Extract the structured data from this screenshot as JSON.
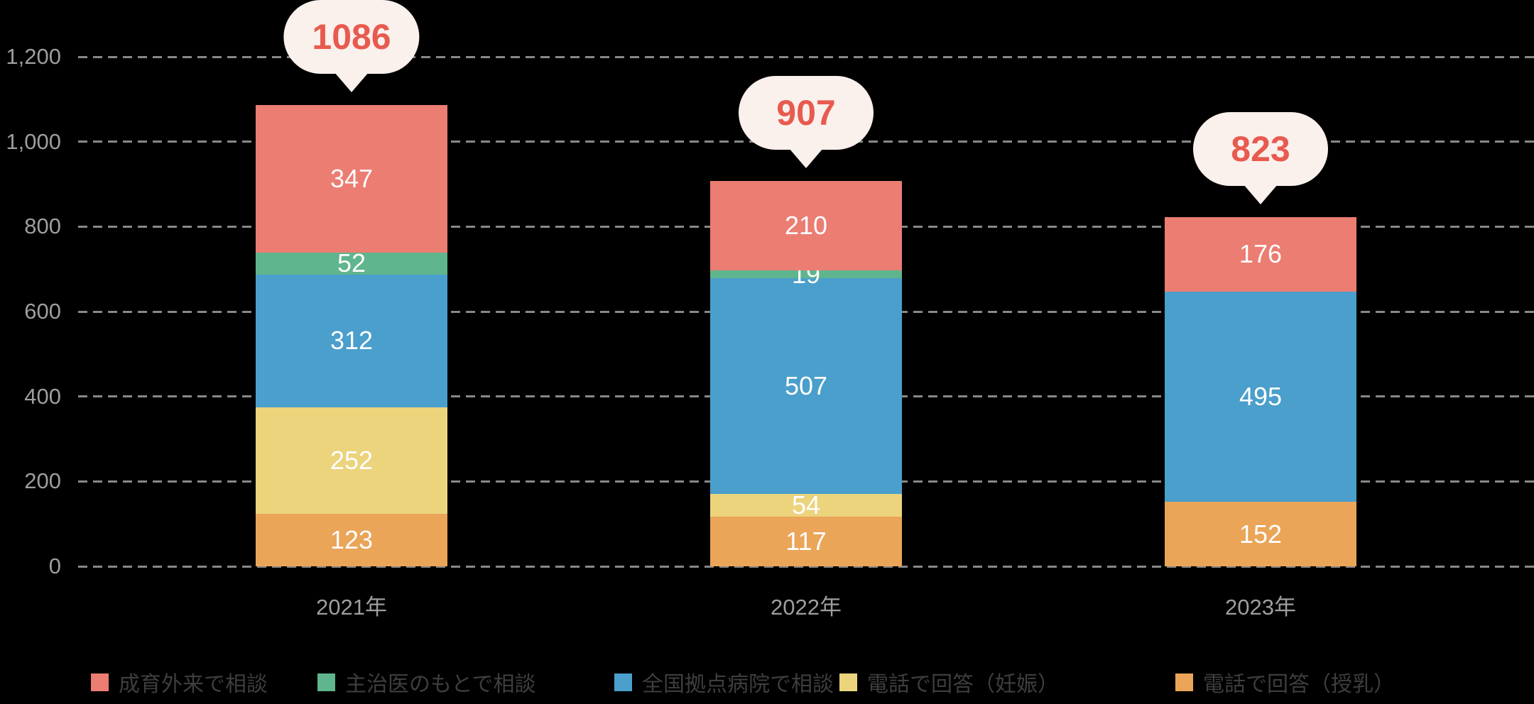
{
  "background": "#000000",
  "style": {
    "grid_color": "#888888",
    "axis_text_color": "#9e9e9e",
    "legend_text_color": "#3e3e3e",
    "bar_label_color": "#ffffff",
    "bubble_bg": "#faf0ec",
    "bubble_text_color": "#e85a4f"
  },
  "chart_data": {
    "type": "bar",
    "stacked": true,
    "title": "",
    "xlabel": "",
    "ylabel": "",
    "categories": [
      "2021年",
      "2022年",
      "2023年"
    ],
    "series": [
      {
        "name": "成育外来で相談",
        "color": "#ec7d72",
        "values": [
          347,
          210,
          176
        ]
      },
      {
        "name": "主治医のもとで相談",
        "color": "#5fb58d",
        "values": [
          52,
          19,
          0
        ]
      },
      {
        "name": "全国拠点病院で相談",
        "color": "#4a9fcc",
        "values": [
          312,
          507,
          495
        ]
      },
      {
        "name": "電話で回答（妊娠）",
        "color": "#ecd47d",
        "values": [
          252,
          54,
          0
        ]
      },
      {
        "name": "電話で回答（授乳）",
        "color": "#eaa558",
        "values": [
          123,
          117,
          152
        ]
      }
    ],
    "stack_order_bottom_to_top": [
      4,
      3,
      2,
      1,
      0
    ],
    "totals": [
      1086,
      907,
      823
    ],
    "ylim": [
      0,
      1200
    ],
    "ytick_step": 200,
    "ytick_labels": [
      "0",
      "200",
      "400",
      "600",
      "800",
      "1,000",
      "1,200"
    ],
    "grid": "dashed-horizontal",
    "legend_position": "bottom"
  }
}
